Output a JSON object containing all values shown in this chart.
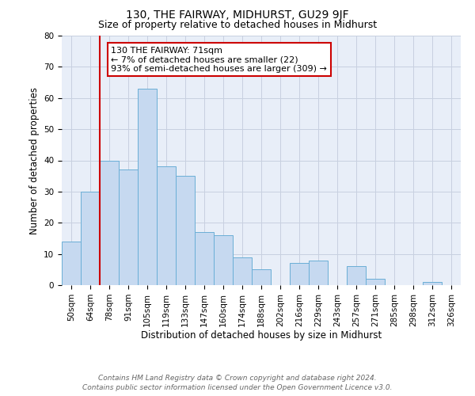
{
  "title": "130, THE FAIRWAY, MIDHURST, GU29 9JF",
  "subtitle": "Size of property relative to detached houses in Midhurst",
  "xlabel": "Distribution of detached houses by size in Midhurst",
  "ylabel": "Number of detached properties",
  "bar_labels": [
    "50sqm",
    "64sqm",
    "78sqm",
    "91sqm",
    "105sqm",
    "119sqm",
    "133sqm",
    "147sqm",
    "160sqm",
    "174sqm",
    "188sqm",
    "202sqm",
    "216sqm",
    "229sqm",
    "243sqm",
    "257sqm",
    "271sqm",
    "285sqm",
    "298sqm",
    "312sqm",
    "326sqm"
  ],
  "bar_values": [
    14,
    30,
    40,
    37,
    63,
    38,
    35,
    17,
    16,
    9,
    5,
    0,
    7,
    8,
    0,
    6,
    2,
    0,
    0,
    1,
    0
  ],
  "bar_color": "#c6d9f0",
  "bar_edge_color": "#6aaed6",
  "vline_color": "#cc0000",
  "vline_x": 1.5,
  "ylim": [
    0,
    80
  ],
  "yticks": [
    0,
    10,
    20,
    30,
    40,
    50,
    60,
    70,
    80
  ],
  "annotation_title": "130 THE FAIRWAY: 71sqm",
  "annotation_line1": "← 7% of detached houses are smaller (22)",
  "annotation_line2": "93% of semi-detached houses are larger (309) →",
  "annotation_box_color": "#ffffff",
  "annotation_box_edge_color": "#cc0000",
  "footer_line1": "Contains HM Land Registry data © Crown copyright and database right 2024.",
  "footer_line2": "Contains public sector information licensed under the Open Government Licence v3.0.",
  "bg_color": "#ffffff",
  "plot_bg_color": "#e8eef8",
  "grid_color": "#c8d0e0",
  "title_fontsize": 10,
  "subtitle_fontsize": 9,
  "axis_label_fontsize": 8.5,
  "tick_fontsize": 7.5,
  "annotation_fontsize": 8,
  "footer_fontsize": 6.5
}
